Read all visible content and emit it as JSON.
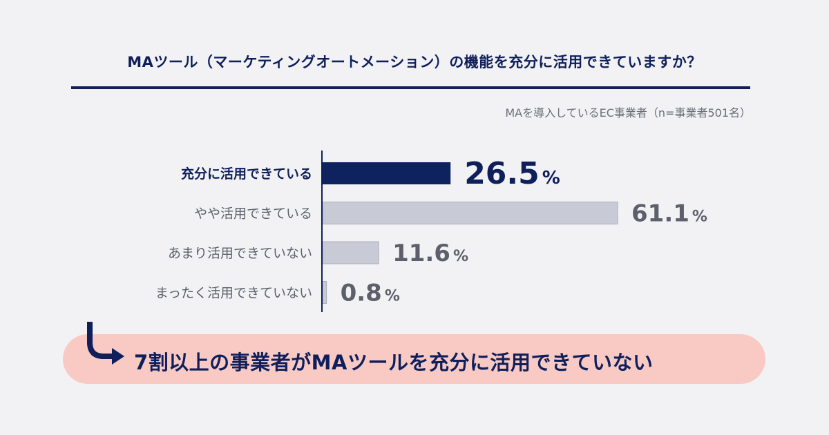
{
  "title": "MAツール（マーケティングオートメーション）の機能を充分に活用できていますか？",
  "sample_note": "MAを導入しているEC事業者（n=事業者501名）",
  "chart_data": {
    "type": "bar",
    "orientation": "horizontal",
    "categories": [
      "充分に活用できている",
      "やや活用できている",
      "あまり活用できていない",
      "まったく活用できていない"
    ],
    "values": [
      26.5,
      61.1,
      11.6,
      0.8
    ],
    "value_labels": [
      "26.5",
      "61.1",
      "11.6",
      "0.8"
    ],
    "unit": "%",
    "highlight_index": 0,
    "colors": {
      "highlight": "#0e2260",
      "default": "#c8cad6",
      "bar_border": "#a9adbd"
    },
    "xlim": [
      0,
      61.1
    ],
    "grid": false
  },
  "callout": {
    "text": "7割以上の事業者がMAツールを充分に活用できていない",
    "icon": "curved-arrow-icon",
    "background": "#f9c9c4"
  },
  "colors": {
    "accent": "#0e1f5b",
    "text_muted": "#6b6e78",
    "background": "#f2f2f4"
  }
}
